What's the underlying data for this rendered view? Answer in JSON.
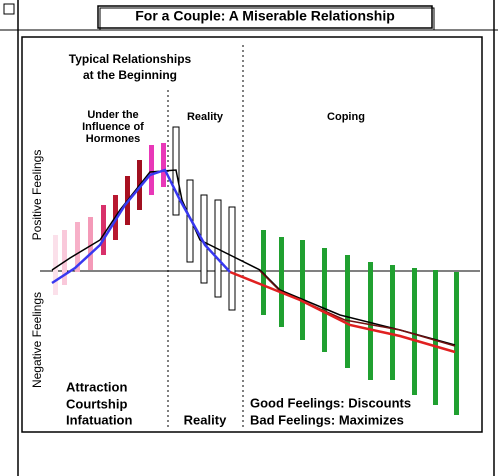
{
  "title": "For a Couple: A Miserable Relationship",
  "axis_labels": {
    "positive": "Positive Feelings",
    "negative": "Negative Feelings"
  },
  "header": [
    "Typical Relationships",
    "at the Beginning"
  ],
  "phases": {
    "hormones": [
      "Under the",
      "Influence of",
      "Hormones"
    ],
    "reality": "Reality",
    "coping": "Coping"
  },
  "footer": {
    "left": [
      "Attraction",
      "Courtship",
      "Infatuation"
    ],
    "middle": "Reality",
    "right": [
      "Good Feelings: Discounts",
      "Bad Feelings: Maximizes"
    ]
  }
}
